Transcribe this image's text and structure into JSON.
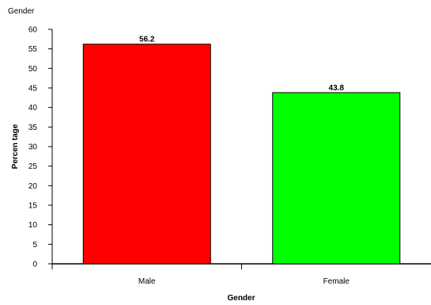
{
  "chart_data": {
    "type": "bar",
    "title": "Gender",
    "xlabel": "Gender",
    "ylabel": "Percentage",
    "ylabel_display": "Percen tage",
    "categories": [
      "Male",
      "Female"
    ],
    "values": [
      56.2,
      43.8
    ],
    "data_labels": [
      "56.2",
      "43.8"
    ],
    "colors": [
      "#ff0000",
      "#00ff00"
    ],
    "ylim": [
      0,
      60
    ],
    "yticks": [
      "0",
      "5",
      "10",
      "15",
      "20",
      "25",
      "30",
      "35",
      "40",
      "45",
      "50",
      "55",
      "60"
    ],
    "grid": false,
    "legend": "none"
  }
}
